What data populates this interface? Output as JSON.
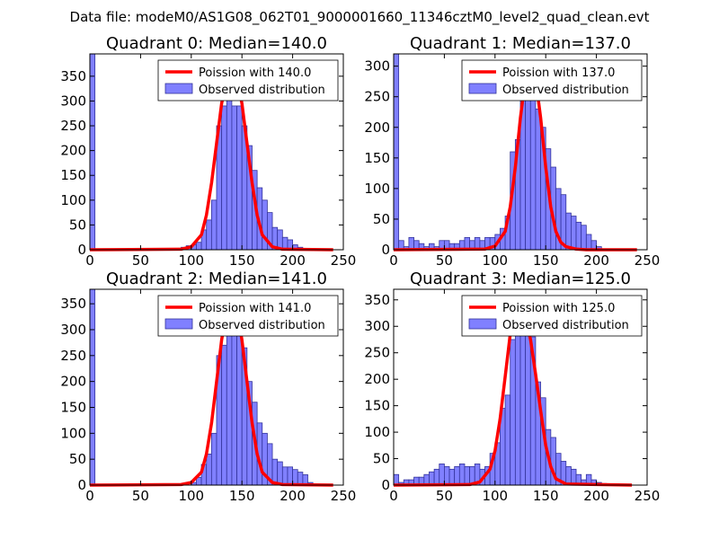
{
  "figure": {
    "suptitle": "Data file: modeM0/AS1G08_062T01_9000001660_11346cztM0_level2_quad_clean.evt",
    "colors": {
      "bar_fill": "#8080ff",
      "bar_edge": "#33339a",
      "line": "#ff0000",
      "axes": "#000000"
    }
  },
  "chart_data": [
    {
      "type": "bar",
      "title": "Quadrant 0: Median=140.0",
      "xlim": [
        0,
        250
      ],
      "ylim": [
        0,
        395
      ],
      "xticks": [
        0,
        50,
        100,
        150,
        200,
        250
      ],
      "yticks": [
        0,
        50,
        100,
        150,
        200,
        250,
        300,
        350
      ],
      "bin_width": 5,
      "bins": [
        [
          0,
          395
        ],
        [
          90,
          5
        ],
        [
          95,
          8
        ],
        [
          100,
          10
        ],
        [
          105,
          15
        ],
        [
          110,
          40
        ],
        [
          115,
          60
        ],
        [
          120,
          100
        ],
        [
          125,
          250
        ],
        [
          130,
          290
        ],
        [
          135,
          355
        ],
        [
          140,
          290
        ],
        [
          145,
          290
        ],
        [
          150,
          250
        ],
        [
          155,
          210
        ],
        [
          160,
          160
        ],
        [
          165,
          125
        ],
        [
          170,
          100
        ],
        [
          175,
          75
        ],
        [
          180,
          45
        ],
        [
          185,
          40
        ],
        [
          190,
          25
        ],
        [
          195,
          20
        ],
        [
          200,
          10
        ],
        [
          205,
          5
        ]
      ],
      "fit_x": [
        0,
        90,
        100,
        110,
        115,
        120,
        125,
        130,
        135,
        140,
        145,
        150,
        155,
        160,
        165,
        170,
        180,
        190,
        240
      ],
      "fit_y": [
        0,
        1,
        6,
        30,
        70,
        135,
        215,
        295,
        345,
        360,
        345,
        295,
        215,
        135,
        70,
        30,
        6,
        1,
        0
      ],
      "legend": [
        "Poission with 140.0",
        "Observed distribution"
      ]
    },
    {
      "type": "bar",
      "title": "Quadrant 1: Median=137.0",
      "xlim": [
        0,
        250
      ],
      "ylim": [
        0,
        320
      ],
      "xticks": [
        0,
        50,
        100,
        150,
        200,
        250
      ],
      "yticks": [
        0,
        50,
        100,
        150,
        200,
        250,
        300
      ],
      "bin_width": 5,
      "bins": [
        [
          0,
          320
        ],
        [
          5,
          15
        ],
        [
          10,
          5
        ],
        [
          15,
          20
        ],
        [
          20,
          15
        ],
        [
          25,
          10
        ],
        [
          30,
          5
        ],
        [
          35,
          10
        ],
        [
          40,
          5
        ],
        [
          45,
          15
        ],
        [
          50,
          15
        ],
        [
          55,
          10
        ],
        [
          60,
          10
        ],
        [
          65,
          15
        ],
        [
          70,
          20
        ],
        [
          75,
          15
        ],
        [
          80,
          20
        ],
        [
          85,
          15
        ],
        [
          90,
          20
        ],
        [
          95,
          20
        ],
        [
          100,
          25
        ],
        [
          105,
          35
        ],
        [
          110,
          55
        ],
        [
          115,
          160
        ],
        [
          120,
          180
        ],
        [
          125,
          280
        ],
        [
          130,
          300
        ],
        [
          135,
          250
        ],
        [
          140,
          230
        ],
        [
          145,
          200
        ],
        [
          150,
          165
        ],
        [
          155,
          135
        ],
        [
          160,
          100
        ],
        [
          165,
          90
        ],
        [
          170,
          60
        ],
        [
          175,
          55
        ],
        [
          180,
          45
        ],
        [
          185,
          40
        ],
        [
          190,
          25
        ],
        [
          195,
          15
        ],
        [
          200,
          5
        ]
      ],
      "fit_x": [
        0,
        90,
        100,
        110,
        115,
        120,
        125,
        130,
        135,
        140,
        145,
        150,
        155,
        160,
        165,
        170,
        180,
        190,
        240
      ],
      "fit_y": [
        0,
        1,
        6,
        30,
        70,
        135,
        215,
        280,
        305,
        280,
        215,
        135,
        70,
        30,
        12,
        5,
        1,
        0,
        0
      ],
      "legend": [
        "Poission with 137.0",
        "Observed distribution"
      ]
    },
    {
      "type": "bar",
      "title": "Quadrant 2: Median=141.0",
      "xlim": [
        0,
        250
      ],
      "ylim": [
        0,
        378
      ],
      "xticks": [
        0,
        50,
        100,
        150,
        200,
        250
      ],
      "yticks": [
        0,
        50,
        100,
        150,
        200,
        250,
        300,
        350
      ],
      "bin_width": 5,
      "bins": [
        [
          0,
          378
        ],
        [
          100,
          5
        ],
        [
          105,
          15
        ],
        [
          110,
          40
        ],
        [
          115,
          60
        ],
        [
          120,
          100
        ],
        [
          125,
          250
        ],
        [
          130,
          270
        ],
        [
          135,
          345
        ],
        [
          140,
          350
        ],
        [
          145,
          290
        ],
        [
          150,
          265
        ],
        [
          155,
          200
        ],
        [
          160,
          160
        ],
        [
          165,
          120
        ],
        [
          170,
          100
        ],
        [
          175,
          80
        ],
        [
          180,
          50
        ],
        [
          185,
          45
        ],
        [
          190,
          35
        ],
        [
          195,
          35
        ],
        [
          200,
          30
        ],
        [
          205,
          25
        ],
        [
          210,
          20
        ],
        [
          215,
          5
        ]
      ],
      "fit_x": [
        0,
        90,
        100,
        110,
        115,
        120,
        125,
        130,
        135,
        140,
        145,
        150,
        155,
        160,
        165,
        170,
        180,
        190,
        240
      ],
      "fit_y": [
        0,
        1,
        5,
        25,
        60,
        120,
        200,
        280,
        340,
        360,
        340,
        280,
        200,
        120,
        60,
        25,
        5,
        1,
        0
      ],
      "legend": [
        "Poission with 141.0",
        "Observed distribution"
      ]
    },
    {
      "type": "bar",
      "title": "Quadrant 3: Median=125.0",
      "xlim": [
        0,
        250
      ],
      "ylim": [
        0,
        370
      ],
      "xticks": [
        0,
        50,
        100,
        150,
        200,
        250
      ],
      "yticks": [
        0,
        50,
        100,
        150,
        200,
        250,
        300,
        350
      ],
      "bin_width": 5,
      "bins": [
        [
          0,
          20
        ],
        [
          5,
          5
        ],
        [
          10,
          10
        ],
        [
          15,
          10
        ],
        [
          20,
          15
        ],
        [
          25,
          15
        ],
        [
          30,
          20
        ],
        [
          35,
          25
        ],
        [
          40,
          30
        ],
        [
          45,
          40
        ],
        [
          50,
          35
        ],
        [
          55,
          30
        ],
        [
          60,
          35
        ],
        [
          65,
          40
        ],
        [
          70,
          35
        ],
        [
          75,
          35
        ],
        [
          80,
          40
        ],
        [
          85,
          30
        ],
        [
          90,
          35
        ],
        [
          95,
          60
        ],
        [
          100,
          80
        ],
        [
          105,
          145
        ],
        [
          110,
          170
        ],
        [
          115,
          275
        ],
        [
          120,
          310
        ],
        [
          125,
          340
        ],
        [
          130,
          295
        ],
        [
          135,
          280
        ],
        [
          140,
          195
        ],
        [
          145,
          165
        ],
        [
          150,
          105
        ],
        [
          155,
          90
        ],
        [
          160,
          60
        ],
        [
          165,
          45
        ],
        [
          170,
          35
        ],
        [
          175,
          30
        ],
        [
          180,
          20
        ],
        [
          185,
          10
        ],
        [
          190,
          20
        ],
        [
          195,
          10
        ],
        [
          200,
          5
        ],
        [
          205,
          3
        ]
      ],
      "fit_x": [
        0,
        75,
        85,
        95,
        100,
        105,
        110,
        115,
        120,
        125,
        130,
        135,
        140,
        145,
        150,
        155,
        160,
        170,
        235
      ],
      "fit_y": [
        0,
        1,
        6,
        30,
        65,
        125,
        205,
        285,
        335,
        340,
        320,
        275,
        210,
        140,
        75,
        35,
        12,
        2,
        0
      ],
      "legend": [
        "Poission with 125.0",
        "Observed distribution"
      ]
    }
  ]
}
